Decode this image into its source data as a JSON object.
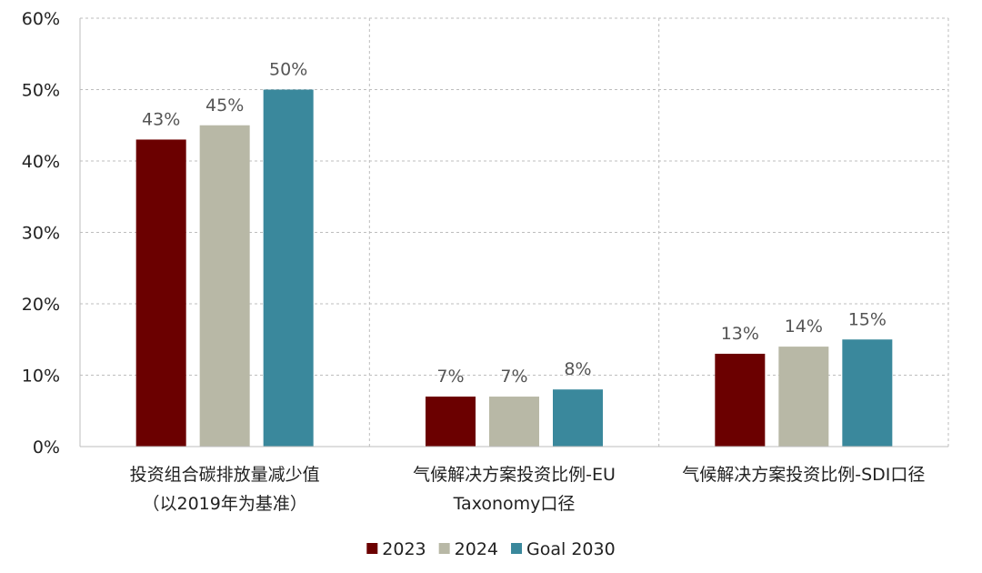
{
  "chart_data": {
    "type": "bar",
    "categories": [
      [
        "投资组合碳排放量减少值",
        "（以2019年为基准）"
      ],
      [
        "气候解决方案投资比例-EU",
        "Taxonomy口径"
      ],
      [
        "气候解决方案投资比例-SDI口径"
      ]
    ],
    "series": [
      {
        "name": "2023",
        "values": [
          43,
          7,
          13
        ],
        "labels": [
          "43%",
          "7%",
          "13%"
        ],
        "color": "#6b0000"
      },
      {
        "name": "2024",
        "values": [
          45,
          7,
          14
        ],
        "labels": [
          "45%",
          "7%",
          "14%"
        ],
        "color": "#b8b8a6"
      },
      {
        "name": "Goal 2030",
        "values": [
          50,
          8,
          15
        ],
        "labels": [
          "50%",
          "8%",
          "15%"
        ],
        "color": "#3a889c"
      }
    ],
    "ylim": [
      0,
      60
    ],
    "yticks": [
      0,
      10,
      20,
      30,
      40,
      50,
      60
    ],
    "ytick_labels": [
      "0%",
      "10%",
      "20%",
      "30%",
      "40%",
      "50%",
      "60%"
    ],
    "grid": true,
    "legend_position": "bottom-center"
  }
}
